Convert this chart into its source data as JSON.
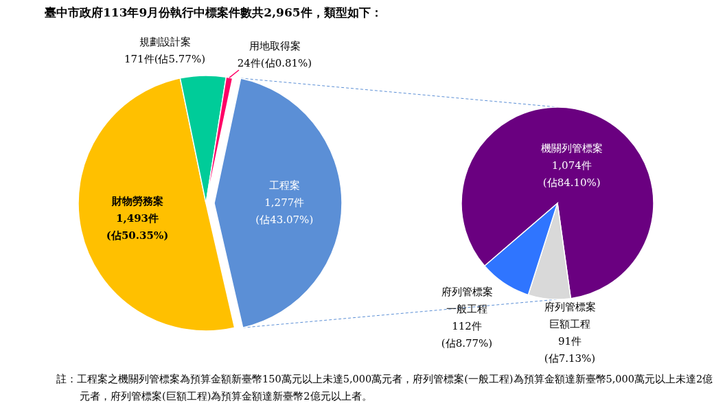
{
  "chart_data": [
    {
      "type": "pie",
      "title": "臺中市政府113年9月份執行中標案件數共2,965件，類型如下：",
      "categories": [
        "工程案",
        "財物勞務案",
        "規劃設計案",
        "用地取得案"
      ],
      "values": [
        1277,
        1493,
        171,
        24
      ],
      "value_labels": [
        "1,277件(佔43.07%)",
        "1,493件(佔50.35%)",
        "171件(佔5.77%)",
        "24件(佔0.81%)"
      ],
      "colors": [
        "#5b8fd6",
        "#ffc000",
        "#00cc99",
        "#ff0066"
      ]
    },
    {
      "type": "pie",
      "categories": [
        "機關列管標案",
        "府列管標案巨額工程",
        "府列管標案一般工程"
      ],
      "values": [
        1074,
        91,
        112
      ],
      "value_labels": [
        "1,074件(佔84.10%)",
        "91件(佔7.13%)",
        "112件(佔8.77%)"
      ],
      "colors": [
        "#6a0080",
        "#d9d9d9",
        "#2f75ff"
      ],
      "annotations": [
        "註：工程案之機關列管標案為預算金額新臺幣150萬元以上未達5,000萬元者，府列管標案(一般工程)為預算金額達新臺幣5,000萬元以上未達2億元者，府列管標案(巨額工程)為預算金額達新臺幣2億元以上者。"
      ]
    }
  ]
}
